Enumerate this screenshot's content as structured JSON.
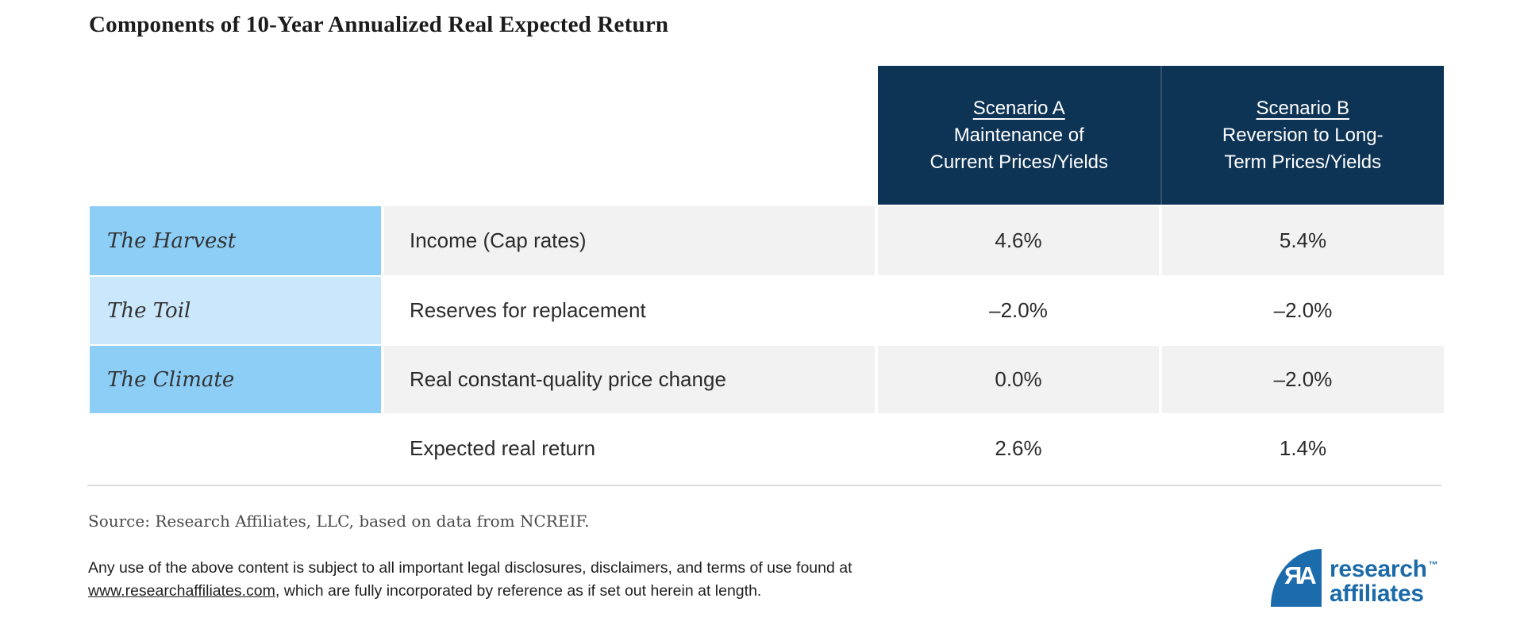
{
  "title": "Components of 10-Year Annualized Real Expected Return",
  "table": {
    "header": {
      "scenario_a": {
        "title": "Scenario A",
        "subtitle_line1": "Maintenance of",
        "subtitle_line2": "Current Prices/Yields"
      },
      "scenario_b": {
        "title": "Scenario B",
        "subtitle_line1": "Reversion to Long-",
        "subtitle_line2": "Term Prices/Yields"
      }
    }
  },
  "chart_data": {
    "type": "table",
    "title": "Components of 10-Year Annualized Real Expected Return",
    "column_headers": [
      {
        "name": "Scenario A",
        "subtitle": "Maintenance of Current Prices/Yields"
      },
      {
        "name": "Scenario B",
        "subtitle": "Reversion to Long-Term Prices/Yields"
      }
    ],
    "rows": [
      {
        "label": "The Harvest",
        "component": "Income (Cap rates)",
        "scenario_a": "4.6%",
        "scenario_b": "5.4%"
      },
      {
        "label": "The Toil",
        "component": "Reserves for replacement",
        "scenario_a": "–2.0%",
        "scenario_b": "–2.0%"
      },
      {
        "label": "The Climate",
        "component": "Real constant-quality price change",
        "scenario_a": "0.0%",
        "scenario_b": "–2.0%"
      },
      {
        "label": "",
        "component": "Expected real return",
        "scenario_a": "2.6%",
        "scenario_b": "1.4%"
      }
    ],
    "values_numeric": {
      "scenario_a": [
        4.6,
        -2.0,
        0.0,
        2.6
      ],
      "scenario_b": [
        5.4,
        -2.0,
        -2.0,
        1.4
      ]
    }
  },
  "source": "Source: Research Affiliates, LLC, based on data from NCREIF.",
  "legal": {
    "line1": "Any use of the above content is subject to all important legal disclosures, disclaimers, and terms of use found at",
    "link": "www.researchaffiliates.com",
    "line2_after_link": ", which are fully incorporated by reference as if set out herein at length."
  },
  "logo": {
    "monogram": "ЯA",
    "line1": "research",
    "line2": "affiliates",
    "trademark": "™"
  },
  "colors": {
    "header_navy": "#0d3355",
    "label_blue": "#8dcef7",
    "label_blue_light": "#cbe7fb",
    "row_gray": "#f2f2f2",
    "logo_blue": "#1c6ba8"
  }
}
